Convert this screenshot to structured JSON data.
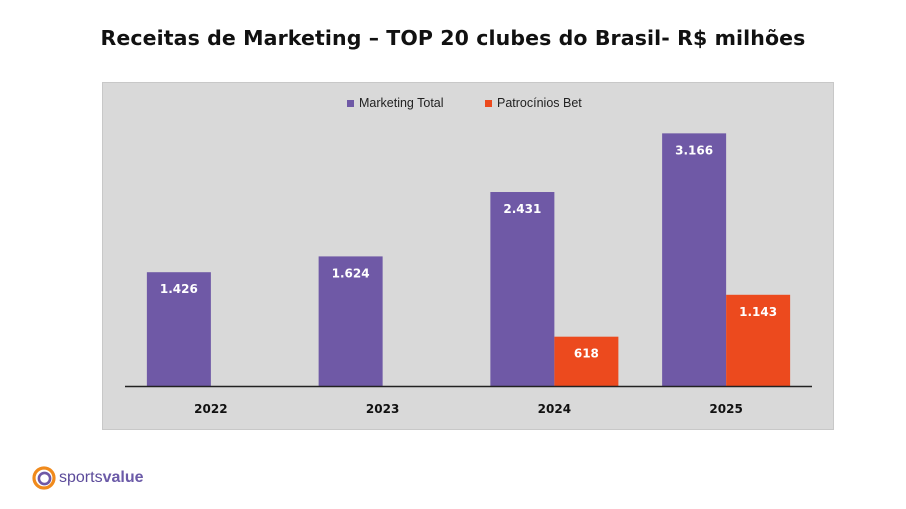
{
  "header": {
    "title": "Receitas de Marketing – TOP 20 clubes do Brasil- R$ milhões"
  },
  "chart_data": {
    "type": "bar",
    "title": "Receitas de Marketing – TOP 20 clubes do Brasil- R$ milhões",
    "categories": [
      "2022",
      "2023",
      "2024",
      "2025"
    ],
    "series": [
      {
        "name": "Marketing Total",
        "color": "#6f59a6",
        "values": [
          1426,
          1624,
          2431,
          3166
        ],
        "labels": [
          "1.426",
          "1.624",
          "2.431",
          "3.166"
        ]
      },
      {
        "name": "Patrocínios Bet",
        "color": "#ec4a1e",
        "values": [
          null,
          null,
          618,
          1143
        ],
        "labels": [
          "",
          "",
          "618",
          "1.143"
        ]
      }
    ],
    "ylim": [
      0,
      3400
    ],
    "grid": false,
    "legend_position": "top-center",
    "xlabel": "",
    "ylabel": ""
  },
  "logo": {
    "part1": "sports",
    "part2": "value",
    "ring_outer_color": "#f08a1c",
    "ring_inner_color": "#6f59a6"
  }
}
